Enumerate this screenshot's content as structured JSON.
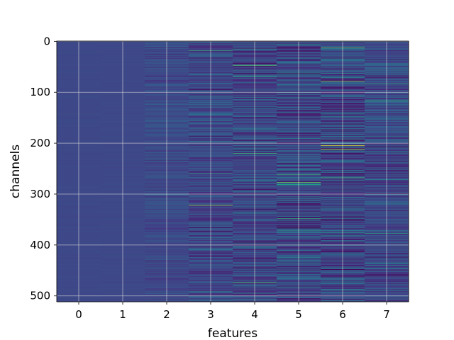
{
  "chart_data": {
    "type": "heatmap",
    "title": "",
    "xlabel": "features",
    "ylabel": "channels",
    "x_ticks": [
      0,
      1,
      2,
      3,
      4,
      5,
      6,
      7
    ],
    "y_ticks": [
      0,
      100,
      200,
      300,
      400,
      500
    ],
    "n_features": 8,
    "n_channels": 512,
    "xlim": [
      -0.5,
      7.5
    ],
    "ylim": [
      511.5,
      -0.5
    ],
    "grid": true,
    "colormap": "viridis",
    "per_feature_variability": [
      0.02,
      0.03,
      0.25,
      0.45,
      0.55,
      0.65,
      0.7,
      0.5
    ],
    "highlights": [
      {
        "feature": 3,
        "channel": 18,
        "value": 0.65
      },
      {
        "feature": 3,
        "channel": 259,
        "value": 0.62
      },
      {
        "feature": 3,
        "channel": 322,
        "value": 0.85
      },
      {
        "feature": 4,
        "channel": 47,
        "value": 0.75
      },
      {
        "feature": 4,
        "channel": 68,
        "value": 0.62
      },
      {
        "feature": 4,
        "channel": 220,
        "value": 0.68
      },
      {
        "feature": 4,
        "channel": 474,
        "value": 0.72
      },
      {
        "feature": 5,
        "channel": 262,
        "value": 0.66
      },
      {
        "feature": 5,
        "channel": 277,
        "value": 0.78
      },
      {
        "feature": 5,
        "channel": 348,
        "value": 0.64
      },
      {
        "feature": 6,
        "channel": 13,
        "value": 0.75
      },
      {
        "feature": 6,
        "channel": 78,
        "value": 0.82
      },
      {
        "feature": 6,
        "channel": 205,
        "value": 0.98
      },
      {
        "feature": 6,
        "channel": 212,
        "value": 0.9
      },
      {
        "feature": 6,
        "channel": 268,
        "value": 0.68
      },
      {
        "feature": 7,
        "channel": 83,
        "value": 0.62
      },
      {
        "feature": 7,
        "channel": 117,
        "value": 0.64
      },
      {
        "feature": 7,
        "channel": 377,
        "value": 0.6
      }
    ]
  }
}
